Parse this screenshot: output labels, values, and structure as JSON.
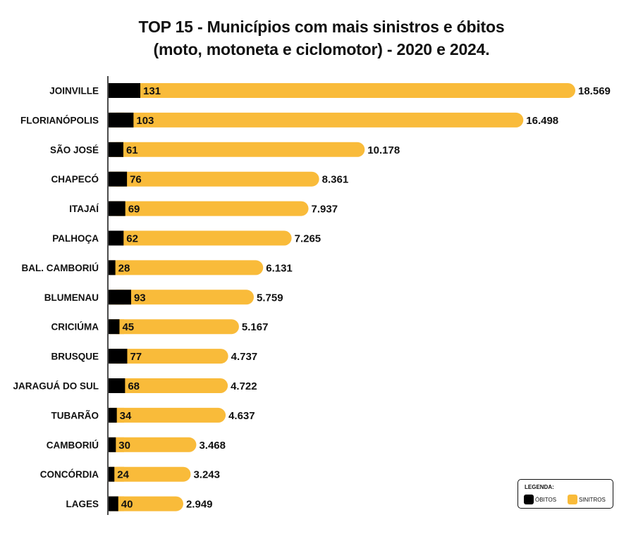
{
  "colors": {
    "obitos": "#000000",
    "sinistros": "#F9BB3A"
  },
  "chart_data": {
    "type": "bar",
    "orientation": "horizontal",
    "title_line1": "TOP 15 - Municípios com mais sinistros e óbitos",
    "title_line2": "(moto, motoneta e ciclomotor) - 2020 e 2024.",
    "categories": [
      "JOINVILLE",
      "FLORIANÓPOLIS",
      "SÃO JOSÉ",
      "CHAPECÓ",
      "ITAJAÍ",
      "PALHOÇA",
      "BAL. CAMBORIÚ",
      "BLUMENAU",
      "CRICIÚMA",
      "BRUSQUE",
      "JARAGUÁ DO SUL",
      "TUBARÃO",
      "CAMBORIÚ",
      "CONCÓRDIA",
      "LAGES"
    ],
    "series": [
      {
        "name": "ÓBITOS",
        "values": [
          131,
          103,
          61,
          76,
          69,
          62,
          28,
          93,
          45,
          77,
          68,
          34,
          30,
          24,
          40
        ]
      },
      {
        "name": "SINITROS",
        "values": [
          18569,
          16498,
          10178,
          8361,
          7937,
          7265,
          6131,
          5759,
          5167,
          4737,
          4722,
          4637,
          3468,
          3243,
          2949
        ]
      }
    ],
    "value_labels_sinistros": [
      "18.569",
      "16.498",
      "10.178",
      "8.361",
      "7.937",
      "7.265",
      "6.131",
      "5.759",
      "5.167",
      "4.737",
      "4.722",
      "4.637",
      "3.468",
      "3.243",
      "2.949"
    ],
    "legend": {
      "title": "LEGENDA:",
      "position": "bottom-right"
    }
  }
}
